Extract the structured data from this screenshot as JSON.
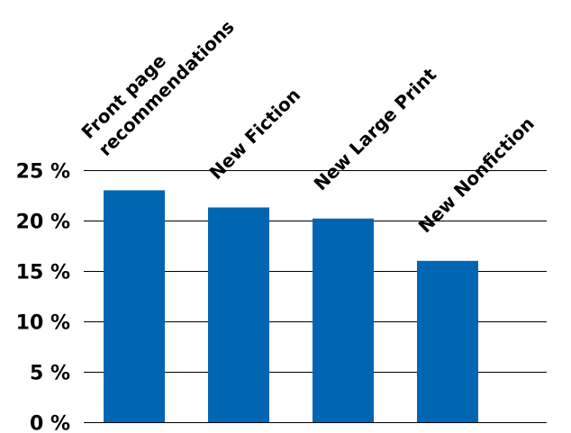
{
  "chart_data": {
    "type": "bar",
    "categories": [
      [
        "Front page",
        "recommendations"
      ],
      [
        "New Fiction"
      ],
      [
        "New Large Print"
      ],
      [
        "New Nonfiction"
      ]
    ],
    "values": [
      23,
      21.3,
      20.2,
      16
    ],
    "yticks": [
      0,
      5,
      10,
      15,
      20,
      25
    ],
    "ytick_labels": [
      "0 %",
      "5 %",
      "10 %",
      "15 %",
      "20 %",
      "25 %"
    ],
    "ylim": [
      0,
      25
    ],
    "grid": true,
    "legend": "none",
    "title": "",
    "xlabel": "",
    "ylabel": "",
    "colors": {
      "bar": "#0066b3",
      "grid": "#000000",
      "text": "#000000"
    }
  }
}
